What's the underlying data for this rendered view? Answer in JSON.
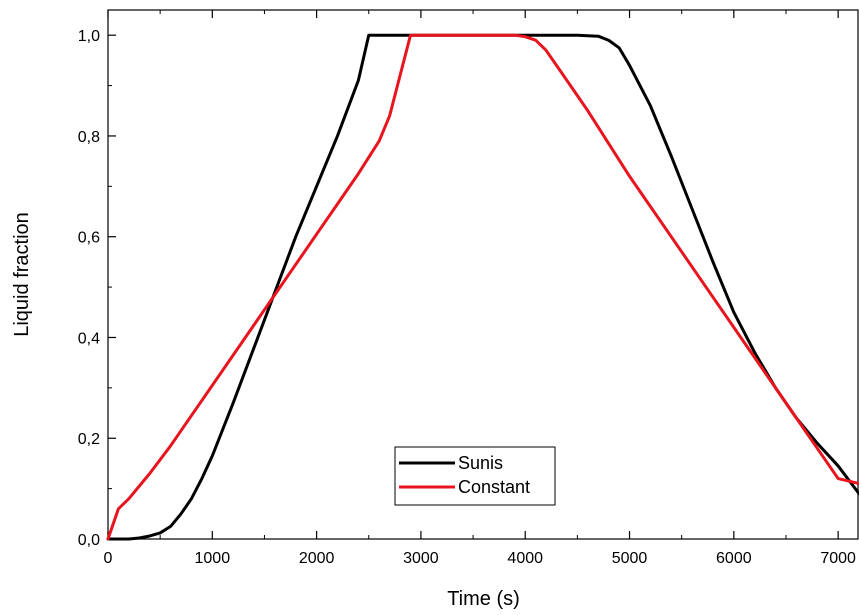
{
  "chart_data": {
    "type": "line",
    "title": "",
    "xlabel": "Time (s)",
    "ylabel": "Liquid fraction",
    "xlim": [
      0,
      7200
    ],
    "ylim": [
      0,
      1.05
    ],
    "x_major_ticks": [
      0,
      1000,
      2000,
      3000,
      4000,
      5000,
      6000,
      7000
    ],
    "x_tick_labels": [
      "0",
      "1000",
      "2000",
      "3000",
      "4000",
      "5000",
      "6000",
      "7000"
    ],
    "y_major_ticks": [
      0,
      0.2,
      0.4,
      0.6,
      0.8,
      1.0
    ],
    "y_tick_labels": [
      "0,0",
      "0,2",
      "0,4",
      "0,6",
      "0,8",
      "1,0"
    ],
    "x_minor_step": 500,
    "y_minor_step": 0.1,
    "grid": false,
    "legend_position": "bottom-center",
    "series": [
      {
        "name": "Sunis",
        "color": "#000000",
        "x": [
          0,
          100,
          200,
          300,
          400,
          500,
          600,
          700,
          800,
          900,
          1000,
          1200,
          1400,
          1600,
          1800,
          2000,
          2200,
          2400,
          2500,
          2600,
          2800,
          3000,
          3500,
          4000,
          4500,
          4700,
          4800,
          4900,
          5000,
          5200,
          5400,
          5600,
          5800,
          6000,
          6200,
          6400,
          6600,
          6800,
          7000,
          7200
        ],
        "values": [
          0,
          0,
          0,
          0.002,
          0.006,
          0.012,
          0.025,
          0.05,
          0.08,
          0.12,
          0.165,
          0.27,
          0.38,
          0.49,
          0.6,
          0.7,
          0.8,
          0.91,
          1.0,
          1.0,
          1.0,
          1.0,
          1.0,
          1.0,
          1.0,
          0.998,
          0.99,
          0.975,
          0.94,
          0.86,
          0.76,
          0.655,
          0.55,
          0.45,
          0.37,
          0.3,
          0.24,
          0.19,
          0.145,
          0.09
        ]
      },
      {
        "name": "Constant",
        "color": "#e8141e",
        "x": [
          0,
          100,
          200,
          400,
          600,
          800,
          1000,
          1200,
          1400,
          1600,
          1800,
          2000,
          2200,
          2400,
          2600,
          2700,
          2800,
          2900,
          3000,
          3500,
          3900,
          4000,
          4100,
          4200,
          4400,
          4600,
          4800,
          5000,
          5200,
          5400,
          5600,
          5800,
          6000,
          6200,
          6400,
          6600,
          6800,
          7000,
          7200
        ],
        "values": [
          0,
          0.06,
          0.08,
          0.13,
          0.185,
          0.245,
          0.305,
          0.365,
          0.425,
          0.485,
          0.545,
          0.605,
          0.665,
          0.725,
          0.79,
          0.84,
          0.92,
          1.0,
          1.0,
          1.0,
          1.0,
          0.997,
          0.99,
          0.97,
          0.91,
          0.85,
          0.785,
          0.72,
          0.66,
          0.6,
          0.54,
          0.48,
          0.42,
          0.36,
          0.3,
          0.24,
          0.18,
          0.12,
          0.11
        ]
      }
    ]
  }
}
